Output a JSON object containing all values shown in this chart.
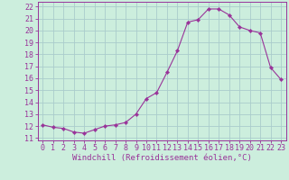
{
  "x": [
    0,
    1,
    2,
    3,
    4,
    5,
    6,
    7,
    8,
    9,
    10,
    11,
    12,
    13,
    14,
    15,
    16,
    17,
    18,
    19,
    20,
    21,
    22,
    23
  ],
  "y": [
    12.1,
    11.9,
    11.8,
    11.5,
    11.4,
    11.7,
    12.0,
    12.1,
    12.3,
    13.0,
    14.3,
    14.8,
    16.5,
    18.3,
    20.7,
    20.9,
    21.8,
    21.8,
    21.3,
    20.3,
    20.0,
    19.8,
    16.9,
    15.9
  ],
  "line_color": "#993399",
  "marker": "D",
  "marker_size": 2.2,
  "bg_color": "#cceedd",
  "grid_color": "#aacccc",
  "xlabel": "Windchill (Refroidissement éolien,°C)",
  "ylabel_ticks": [
    11,
    12,
    13,
    14,
    15,
    16,
    17,
    18,
    19,
    20,
    21,
    22
  ],
  "xlim": [
    -0.5,
    23.5
  ],
  "ylim": [
    10.8,
    22.4
  ],
  "tick_fontsize": 6.0,
  "xlabel_fontsize": 6.5
}
